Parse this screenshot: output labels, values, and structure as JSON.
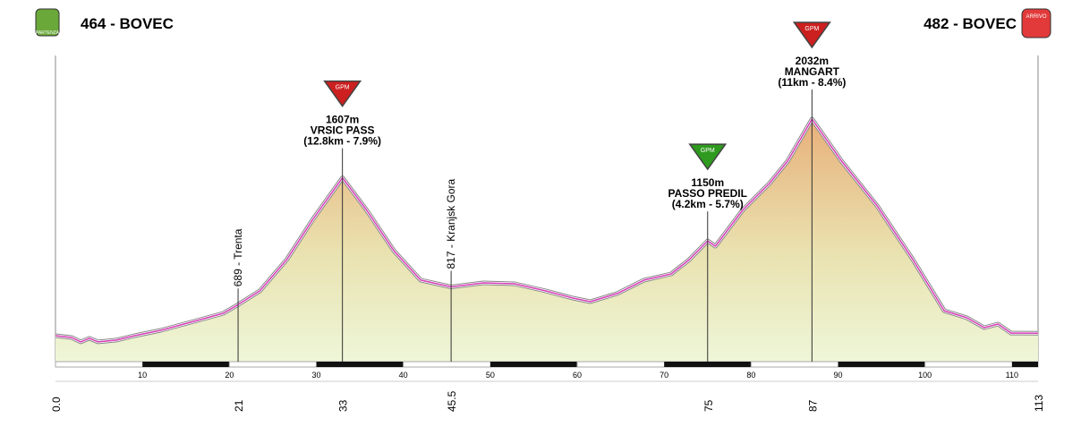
{
  "chart_data": {
    "type": "area",
    "start_label": "464 - BOVEC",
    "end_label": "482 - BOVEC",
    "start_badge": "PARTENZA",
    "end_badge": "ARRIVO",
    "x": [
      0,
      1.85,
      2.9,
      3.9,
      4.9,
      7.0,
      9.1,
      12.1,
      16.3,
      19.3,
      21,
      23.5,
      26.6,
      29.6,
      33,
      35.8,
      38.9,
      42,
      45.5,
      49.2,
      52.8,
      56.4,
      59.5,
      61.5,
      64.6,
      67.7,
      70.8,
      72.9,
      75,
      75.9,
      79,
      82.1,
      84.2,
      87,
      90.4,
      94.5,
      98.6,
      102.2,
      104.8,
      106.8,
      108.4,
      109.9,
      113
    ],
    "values": [
      464,
      451,
      419,
      445,
      419,
      432,
      464,
      503,
      574,
      626,
      689,
      788,
      1015,
      1306,
      1607,
      1371,
      1080,
      866,
      817,
      846,
      840,
      788,
      736,
      710,
      769,
      866,
      911,
      1015,
      1150,
      1112,
      1371,
      1566,
      1728,
      2032,
      1728,
      1404,
      1015,
      645,
      594,
      522,
      548,
      483,
      482
    ],
    "color": "#d63fb8",
    "xlim": [
      0,
      113
    ],
    "ylim": [
      276,
      2492
    ],
    "xticks": [
      10,
      20,
      30,
      40,
      50,
      60,
      70,
      80,
      90,
      100,
      110
    ],
    "xmarks": [
      {
        "value": 0,
        "label": "0.0"
      },
      21,
      33,
      45.5,
      75,
      87,
      113
    ],
    "places": [
      {
        "x": 21,
        "label": "689 - Trenta"
      },
      {
        "x": 45.5,
        "label": "817 - Kranjsk Gora"
      }
    ],
    "climbs": [
      {
        "x": 33,
        "badge": "GPM",
        "color": "#cc1f1f",
        "lines": [
          "1607m",
          "VRSIC PASS",
          "(12.8km - 7.9%)"
        ]
      },
      {
        "x": 75,
        "badge": "GPM",
        "color": "#2e9a1e",
        "lines": [
          "1150m",
          "PASSO PREDIL",
          "(4.2km - 5.7%)"
        ]
      },
      {
        "x": 87,
        "badge": "GPM",
        "color": "#cc1f1f",
        "lines": [
          "2032m",
          "MANGART",
          "(11km - 8.4%)"
        ]
      }
    ]
  }
}
